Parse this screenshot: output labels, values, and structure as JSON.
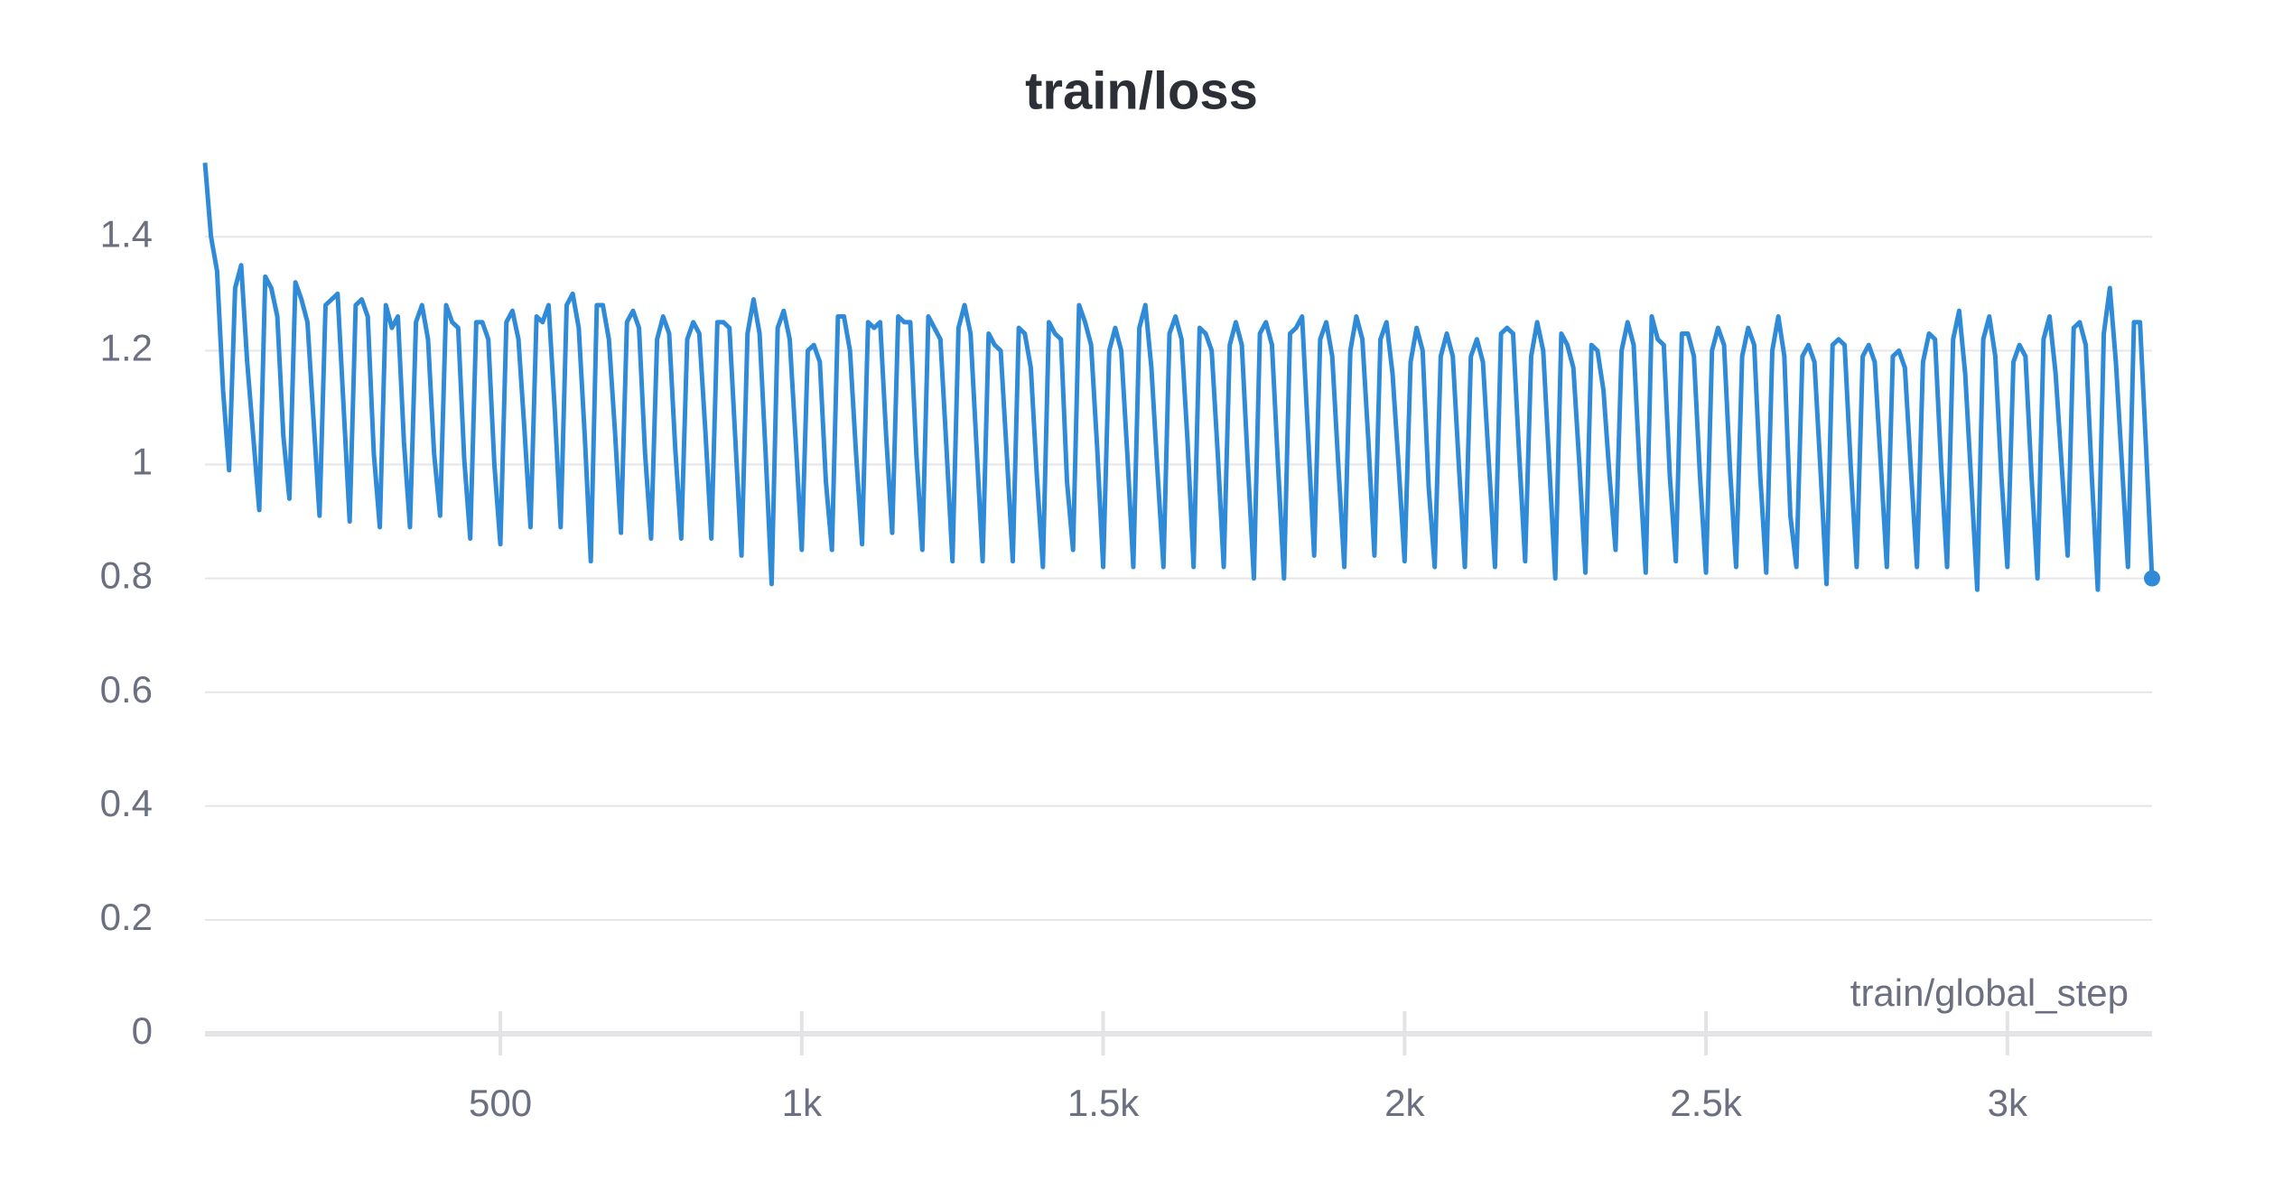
{
  "chart_data": {
    "type": "line",
    "title": "train/loss",
    "x_label": "train/global_step",
    "color": "#2f8ad8",
    "grid": true,
    "xlim": [
      10,
      3240
    ],
    "ylim": [
      0,
      1.54
    ],
    "xticks": [
      500,
      {
        "value": 1000,
        "label": "1k"
      },
      {
        "value": 1500,
        "label": "1.5k"
      },
      {
        "value": 2000,
        "label": "2k"
      },
      {
        "value": 2500,
        "label": "2.5k"
      },
      {
        "value": 3000,
        "label": "3k"
      }
    ],
    "yticks": [
      0,
      0.2,
      0.4,
      0.6,
      0.8,
      1,
      1.2,
      1.4
    ],
    "x": [
      10,
      20,
      30,
      40,
      50,
      60,
      70,
      80,
      90,
      100,
      110,
      120,
      130,
      140,
      150,
      160,
      170,
      180,
      190,
      200,
      210,
      220,
      230,
      240,
      250,
      260,
      270,
      280,
      290,
      300,
      310,
      320,
      330,
      340,
      350,
      360,
      370,
      380,
      390,
      400,
      410,
      420,
      430,
      440,
      450,
      460,
      470,
      480,
      490,
      500,
      510,
      520,
      530,
      540,
      550,
      560,
      570,
      580,
      590,
      600,
      610,
      620,
      630,
      640,
      650,
      660,
      670,
      680,
      690,
      700,
      710,
      720,
      730,
      740,
      750,
      760,
      770,
      780,
      790,
      800,
      810,
      820,
      830,
      840,
      850,
      860,
      870,
      880,
      890,
      900,
      910,
      920,
      930,
      940,
      950,
      960,
      970,
      980,
      990,
      1000,
      1010,
      1020,
      1030,
      1040,
      1050,
      1060,
      1070,
      1080,
      1090,
      1100,
      1110,
      1120,
      1130,
      1140,
      1150,
      1160,
      1170,
      1180,
      1190,
      1200,
      1210,
      1220,
      1230,
      1240,
      1250,
      1260,
      1270,
      1280,
      1290,
      1300,
      1310,
      1320,
      1330,
      1340,
      1350,
      1360,
      1370,
      1380,
      1390,
      1400,
      1410,
      1420,
      1430,
      1440,
      1450,
      1460,
      1470,
      1480,
      1490,
      1500,
      1510,
      1520,
      1530,
      1540,
      1550,
      1560,
      1570,
      1580,
      1590,
      1600,
      1610,
      1620,
      1630,
      1640,
      1650,
      1660,
      1670,
      1680,
      1690,
      1700,
      1710,
      1720,
      1730,
      1740,
      1750,
      1760,
      1770,
      1780,
      1790,
      1800,
      1810,
      1820,
      1830,
      1840,
      1850,
      1860,
      1870,
      1880,
      1890,
      1900,
      1910,
      1920,
      1930,
      1940,
      1950,
      1960,
      1970,
      1980,
      1990,
      2000,
      2010,
      2020,
      2030,
      2040,
      2050,
      2060,
      2070,
      2080,
      2090,
      2100,
      2110,
      2120,
      2130,
      2140,
      2150,
      2160,
      2170,
      2180,
      2190,
      2200,
      2210,
      2220,
      2230,
      2240,
      2250,
      2260,
      2270,
      2280,
      2290,
      2300,
      2310,
      2320,
      2330,
      2340,
      2350,
      2360,
      2370,
      2380,
      2390,
      2400,
      2410,
      2420,
      2430,
      2440,
      2450,
      2460,
      2470,
      2480,
      2490,
      2500,
      2510,
      2520,
      2530,
      2540,
      2550,
      2560,
      2570,
      2580,
      2590,
      2600,
      2610,
      2620,
      2630,
      2640,
      2650,
      2660,
      2670,
      2680,
      2690,
      2700,
      2710,
      2720,
      2730,
      2740,
      2750,
      2760,
      2770,
      2780,
      2790,
      2800,
      2810,
      2820,
      2830,
      2840,
      2850,
      2860,
      2870,
      2880,
      2890,
      2900,
      2910,
      2920,
      2930,
      2940,
      2950,
      2960,
      2970,
      2980,
      2990,
      3000,
      3010,
      3020,
      3030,
      3040,
      3050,
      3060,
      3070,
      3080,
      3090,
      3100,
      3110,
      3120,
      3130,
      3140,
      3150,
      3160,
      3170,
      3180,
      3190,
      3200,
      3210,
      3220,
      3230,
      3240
    ],
    "values": [
      1.53,
      1.4,
      1.34,
      1.13,
      0.99,
      1.31,
      1.35,
      1.18,
      1.05,
      0.92,
      1.33,
      1.31,
      1.26,
      1.05,
      0.94,
      1.32,
      1.29,
      1.25,
      1.08,
      0.91,
      1.28,
      1.29,
      1.3,
      1.1,
      0.9,
      1.28,
      1.29,
      1.26,
      1.02,
      0.89,
      1.28,
      1.24,
      1.26,
      1.04,
      0.89,
      1.25,
      1.28,
      1.22,
      1.02,
      0.91,
      1.28,
      1.25,
      1.24,
      1.01,
      0.87,
      1.25,
      1.25,
      1.22,
      1.0,
      0.86,
      1.25,
      1.27,
      1.22,
      1.06,
      0.89,
      1.26,
      1.25,
      1.28,
      1.1,
      0.89,
      1.28,
      1.3,
      1.24,
      1.05,
      0.83,
      1.28,
      1.28,
      1.22,
      1.06,
      0.88,
      1.25,
      1.27,
      1.24,
      1.02,
      0.87,
      1.22,
      1.26,
      1.23,
      1.03,
      0.87,
      1.22,
      1.25,
      1.23,
      1.06,
      0.87,
      1.25,
      1.25,
      1.24,
      1.04,
      0.84,
      1.23,
      1.29,
      1.23,
      1.02,
      0.79,
      1.24,
      1.27,
      1.22,
      1.04,
      0.85,
      1.2,
      1.21,
      1.18,
      0.97,
      0.85,
      1.26,
      1.26,
      1.2,
      1.02,
      0.86,
      1.25,
      1.24,
      1.25,
      1.05,
      0.88,
      1.26,
      1.25,
      1.25,
      1.02,
      0.85,
      1.26,
      1.24,
      1.22,
      1.03,
      0.83,
      1.24,
      1.28,
      1.23,
      1.03,
      0.83,
      1.23,
      1.21,
      1.2,
      1.02,
      0.83,
      1.24,
      1.23,
      1.17,
      0.98,
      0.82,
      1.25,
      1.23,
      1.22,
      0.97,
      0.85,
      1.28,
      1.25,
      1.21,
      1.03,
      0.82,
      1.2,
      1.24,
      1.2,
      1.02,
      0.82,
      1.24,
      1.28,
      1.17,
      0.99,
      0.82,
      1.23,
      1.26,
      1.22,
      1.04,
      0.82,
      1.24,
      1.23,
      1.2,
      1.02,
      0.82,
      1.21,
      1.25,
      1.21,
      1.0,
      0.8,
      1.23,
      1.25,
      1.21,
      1.0,
      0.8,
      1.23,
      1.24,
      1.26,
      1.05,
      0.84,
      1.22,
      1.25,
      1.19,
      1.0,
      0.82,
      1.2,
      1.26,
      1.22,
      1.04,
      0.84,
      1.22,
      1.25,
      1.16,
      1.0,
      0.83,
      1.18,
      1.24,
      1.2,
      0.96,
      0.82,
      1.19,
      1.23,
      1.19,
      1.0,
      0.82,
      1.19,
      1.22,
      1.18,
      1.0,
      0.82,
      1.23,
      1.24,
      1.23,
      1.02,
      0.83,
      1.19,
      1.25,
      1.2,
      1.0,
      0.8,
      1.23,
      1.21,
      1.17,
      1.0,
      0.81,
      1.21,
      1.2,
      1.13,
      0.98,
      0.85,
      1.2,
      1.25,
      1.21,
      0.99,
      0.81,
      1.26,
      1.22,
      1.21,
      0.98,
      0.83,
      1.23,
      1.23,
      1.19,
      0.98,
      0.81,
      1.2,
      1.24,
      1.21,
      0.99,
      0.82,
      1.19,
      1.24,
      1.21,
      0.98,
      0.81,
      1.2,
      1.26,
      1.19,
      0.91,
      0.82,
      1.19,
      1.21,
      1.18,
      0.99,
      0.79,
      1.21,
      1.22,
      1.21,
      1.0,
      0.82,
      1.19,
      1.21,
      1.18,
      1.0,
      0.82,
      1.19,
      1.2,
      1.17,
      0.99,
      0.82,
      1.18,
      1.23,
      1.22,
      1.0,
      0.82,
      1.22,
      1.27,
      1.16,
      0.97,
      0.78,
      1.22,
      1.26,
      1.19,
      0.98,
      0.82,
      1.18,
      1.21,
      1.19,
      0.98,
      0.8,
      1.22,
      1.26,
      1.16,
      1.0,
      0.84,
      1.24,
      1.25,
      1.21,
      0.98,
      0.78,
      1.23,
      1.31,
      1.18,
      1.0,
      0.82,
      1.25,
      1.25,
      1.03,
      0.8
    ]
  }
}
